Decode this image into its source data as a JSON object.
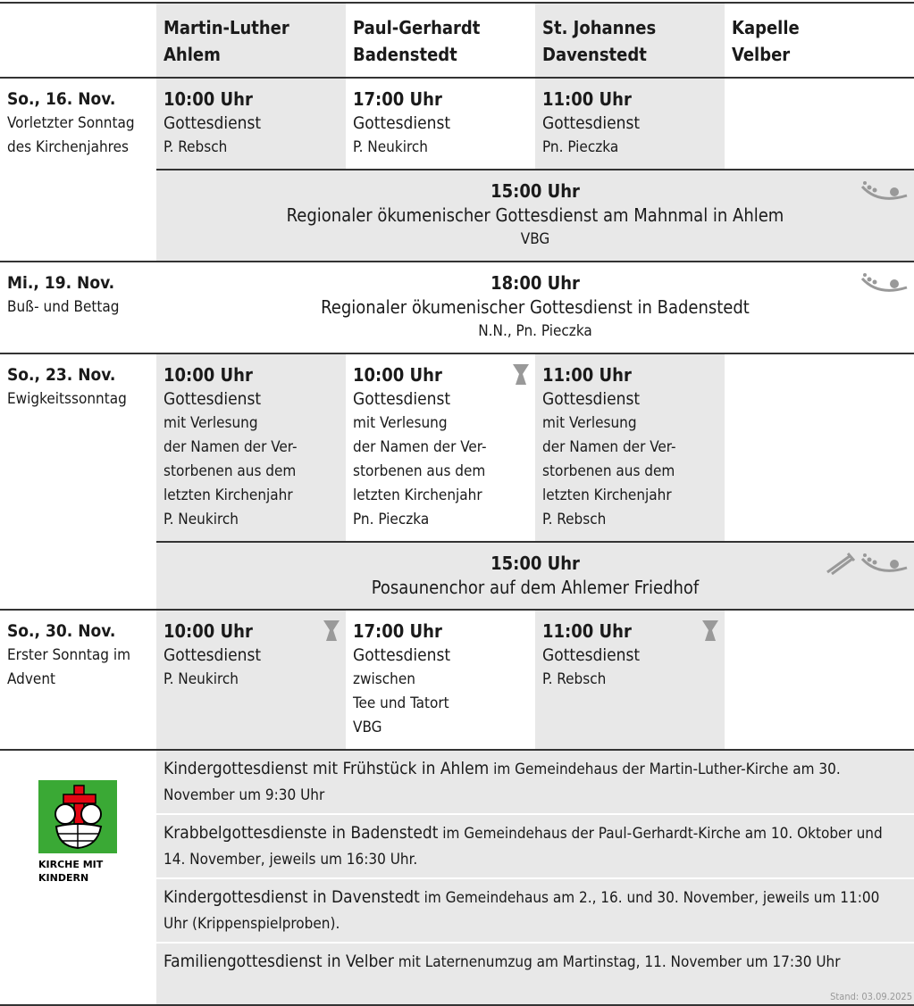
{
  "header": [
    "",
    "Martin-Luther Ahlem",
    "Paul-Gerhardt Badenstedt",
    "St. Johannes Davenstedt",
    "Kapelle Velber"
  ],
  "header_lines": [
    [
      "Martin-Luther",
      "Ahlem"
    ],
    [
      "Paul-Gerhardt",
      "Badenstedt"
    ],
    [
      "St. Johannes",
      "Davenstedt"
    ],
    [
      "Kapelle",
      "Velber"
    ]
  ],
  "days": [
    {
      "date": "So., 16. Nov.",
      "note": "Vorletzter Sonntag des Kirchenjahres",
      "cells": [
        {
          "time": "10:00 Uhr",
          "type": "Gottesdienst",
          "by": "P. Rebsch"
        },
        {
          "time": "17:00 Uhr",
          "type": "Gottesdienst",
          "by": "P. Neukirch"
        },
        {
          "time": "11:00 Uhr",
          "type": "Gottesdienst",
          "by": "Pn. Pieczka"
        }
      ],
      "wide": {
        "time": "15:00 Uhr",
        "title": "Regionaler ökumenischer Gottesdienst am Mahnmal in Ahlem",
        "by": "VBG",
        "icons": [
          "ecumenical-icon"
        ]
      }
    },
    {
      "date": "Mi., 19. Nov.",
      "note": "Buß- und Bettag",
      "wide": {
        "time": "18:00 Uhr",
        "title": "Regionaler ökumenischer Gottesdienst in Badenstedt",
        "by": "N.N., Pn. Pieczka",
        "icons": [
          "ecumenical-icon"
        ]
      }
    },
    {
      "date": "So., 23. Nov.",
      "note": "Ewigkeitssonntag",
      "cells": [
        {
          "time": "10:00 Uhr",
          "type": "Gottesdienst",
          "lines": [
            "mit Verlesung",
            "der Namen der Ver-",
            "storbenen aus dem",
            "letzten Kirchenjahr"
          ],
          "by": "P. Neukirch"
        },
        {
          "time": "10:00 Uhr",
          "type": "Gottesdienst",
          "lines": [
            "mit Verlesung",
            "der Namen der Ver-",
            "storbenen aus dem",
            "letzten Kirchenjahr"
          ],
          "by": "Pn. Pieczka",
          "icons": [
            "chalice-icon"
          ]
        },
        {
          "time": "11:00 Uhr",
          "type": "Gottesdienst",
          "lines": [
            "mit Verlesung",
            "der Namen der Ver-",
            "storbenen aus dem",
            "letzten Kirchenjahr"
          ],
          "by": "P. Rebsch"
        }
      ],
      "wide": {
        "time": "15:00 Uhr",
        "title": "Posaunenchor auf dem Ahlemer Friedhof",
        "icons": [
          "trombone-icon",
          "ecumenical-icon"
        ]
      }
    },
    {
      "date": "So., 30. Nov.",
      "note": "Erster Sonntag im Advent",
      "cells": [
        {
          "time": "10:00 Uhr",
          "type": "Gottesdienst",
          "by": "P. Neukirch",
          "icons": [
            "chalice-icon"
          ]
        },
        {
          "time": "17:00 Uhr",
          "type": "Gottesdienst",
          "lines": [
            "zwischen",
            "Tee und Tatort"
          ],
          "by": "VBG"
        },
        {
          "time": "11:00 Uhr",
          "type": "Gottesdienst",
          "by": "P. Rebsch",
          "icons": [
            "chalice-icon"
          ]
        }
      ]
    }
  ],
  "kids": {
    "logo_text": "KIRCHE MIT KINDERN",
    "items": [
      {
        "title": "Kindergottesdienst mit Frühstück in Ahlem",
        "detail": " im Gemeindehaus der Martin-Luther-Kirche am 30. November um 9:30 Uhr"
      },
      {
        "title": "Krabbelgottesdienste in Badenstedt",
        "detail": " im Gemeindehaus der Paul-Gerhardt-Kirche am 10. Oktober und 14. November, jeweils um 16:30 Uhr."
      },
      {
        "title": "Kindergottesdienst in Davenstedt",
        "detail": " im Gemeindehaus am 2., 16. und 30. November, jeweils um 11:00 Uhr (Krippenspielproben)."
      },
      {
        "title": "Familiengottesdienst in Velber",
        "detail": " mit Laternenumzug am Martinstag, 11. November um 17:30 Uhr"
      }
    ]
  },
  "footer": "Stand: 03.09.2025",
  "colors": {
    "shade": "#e8e8e8",
    "rule": "#333333",
    "icon": "#999999",
    "logo_green": "#3aa935",
    "logo_red": "#e30613"
  }
}
